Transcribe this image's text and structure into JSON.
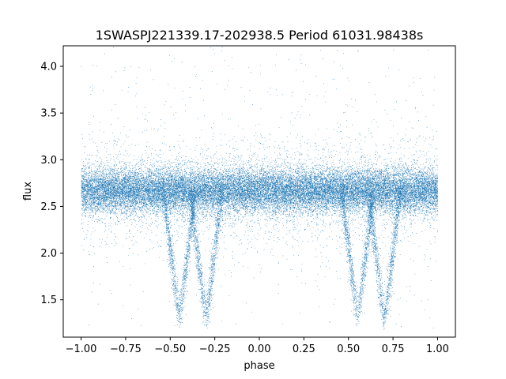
{
  "chart_data": {
    "type": "scatter",
    "title": "1SWASPJ221339.17-202938.5 Period 61031.98438s",
    "xlabel": "phase",
    "ylabel": "flux",
    "xlim": [
      -1.1,
      1.1
    ],
    "ylim": [
      1.1,
      4.22
    ],
    "grid": false,
    "marker_color": "#1f77b4",
    "x_ticks": [
      {
        "value": -1.0,
        "label": "−1.00"
      },
      {
        "value": -0.75,
        "label": "−0.75"
      },
      {
        "value": -0.5,
        "label": "−0.50"
      },
      {
        "value": -0.25,
        "label": "−0.25"
      },
      {
        "value": 0.0,
        "label": "0.00"
      },
      {
        "value": 0.25,
        "label": "0.25"
      },
      {
        "value": 0.5,
        "label": "0.50"
      },
      {
        "value": 0.75,
        "label": "0.75"
      },
      {
        "value": 1.0,
        "label": "1.00"
      }
    ],
    "y_ticks": [
      {
        "value": 1.5,
        "label": "1.5"
      },
      {
        "value": 2.0,
        "label": "2.0"
      },
      {
        "value": 2.5,
        "label": "2.5"
      },
      {
        "value": 3.0,
        "label": "3.0"
      },
      {
        "value": 3.5,
        "label": "3.5"
      },
      {
        "value": 4.0,
        "label": "4.0"
      }
    ],
    "series": [
      {
        "x_range": [
          -1.0,
          1.0
        ],
        "baseline_flux": 2.67,
        "baseline_scatter": 0.12,
        "eclipse_minima": [
          {
            "phase": -0.45,
            "min_flux": 1.28
          },
          {
            "phase": -0.3,
            "min_flux": 1.26
          },
          {
            "phase": 0.55,
            "min_flux": 1.28
          },
          {
            "phase": 0.7,
            "min_flux": 1.26
          }
        ]
      }
    ]
  }
}
